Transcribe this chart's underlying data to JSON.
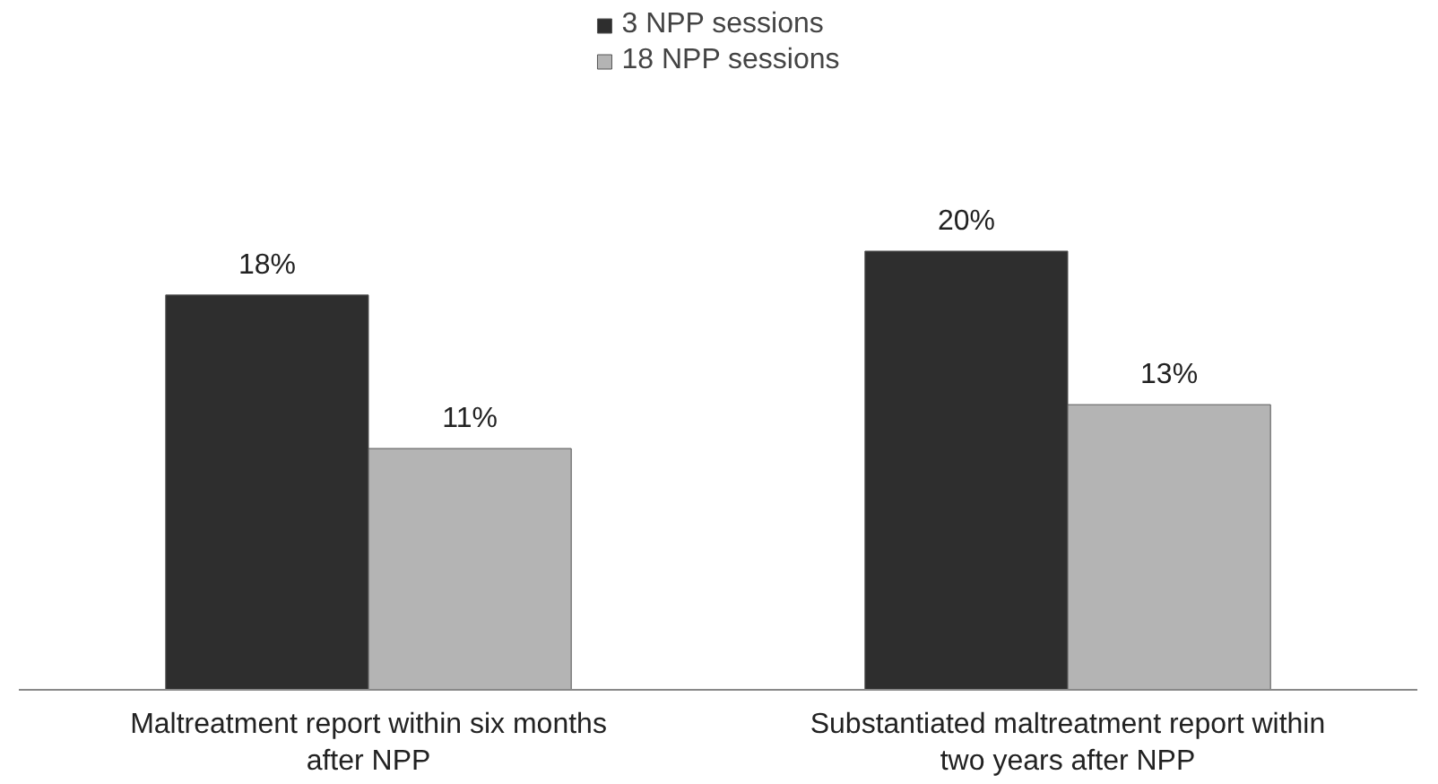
{
  "chart_data": {
    "type": "bar",
    "categories": [
      "Maltreatment report within six months after NPP",
      "Substantiated maltreatment report within two years after NPP"
    ],
    "series": [
      {
        "name": "3 NPP sessions",
        "color": "#2e2e2e",
        "values": [
          18,
          20
        ],
        "value_labels": [
          "18%",
          "20%"
        ]
      },
      {
        "name": "18 NPP sessions",
        "color": "#b4b4b4",
        "values": [
          11,
          13
        ],
        "value_labels": [
          "11%",
          "13%"
        ]
      }
    ],
    "legend": "top"
  }
}
